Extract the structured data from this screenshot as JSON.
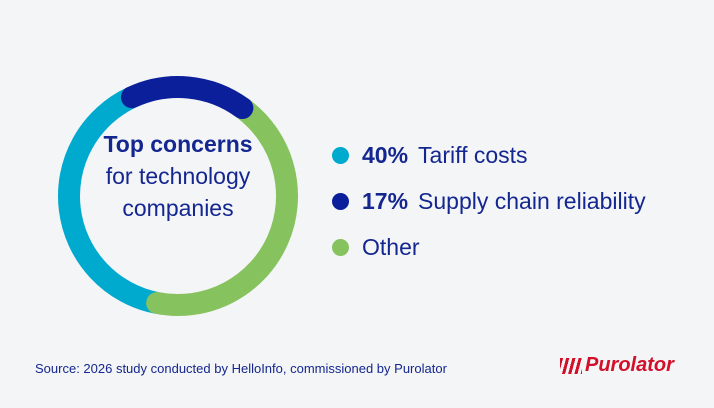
{
  "chart_data": {
    "type": "donut",
    "title_bold": "Top concerns",
    "title": "for technology companies",
    "categories": [
      "Tariff costs",
      "Supply chain reliability",
      "Other"
    ],
    "values": [
      40,
      17,
      43
    ],
    "value_labels": [
      "40%",
      "17%",
      null
    ],
    "colors": [
      "#00a9ce",
      "#0b1f9b",
      "#86c35f"
    ],
    "source": "Source: 2026 study conducted by HelloInfo, commissioned by Purolator",
    "logo": "Purolator"
  }
}
